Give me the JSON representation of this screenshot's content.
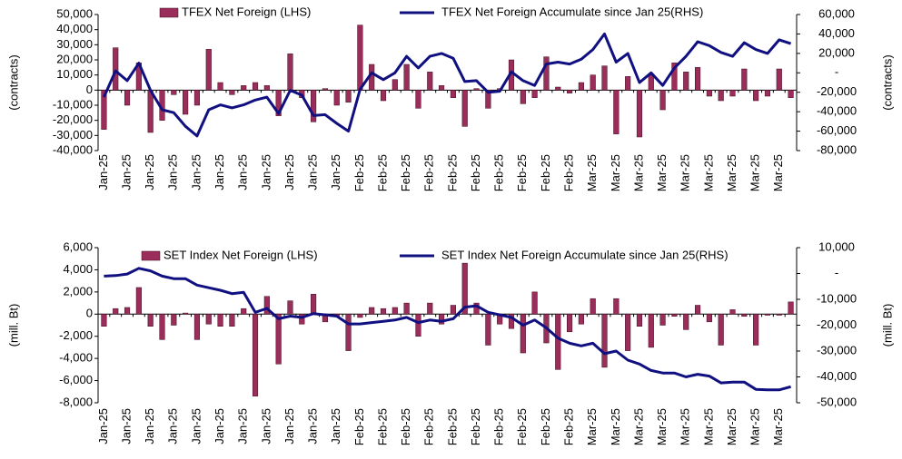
{
  "chart_data": [
    {
      "type": "combo",
      "ylabel": "(contracts)",
      "y2label": "(contracts)",
      "categories": [
        "Jan-25",
        null,
        "Jan-25",
        null,
        "Jan-25",
        null,
        "Jan-25",
        null,
        "Jan-25",
        null,
        "Jan-25",
        null,
        "Jan-25",
        null,
        "Jan-25",
        null,
        "Jan-25",
        null,
        "Jan-25",
        null,
        "Jan-25",
        null,
        "Feb-25",
        null,
        "Feb-25",
        null,
        "Feb-25",
        null,
        "Feb-25",
        null,
        "Feb-25",
        null,
        "Feb-25",
        null,
        "Feb-25",
        null,
        "Feb-25",
        null,
        "Feb-25",
        null,
        "Feb-25",
        null,
        "Mar-25",
        null,
        "Mar-25",
        null,
        "Mar-25",
        null,
        "Mar-25",
        null,
        "Mar-25",
        null,
        "Mar-25",
        null,
        "Mar-25",
        null,
        "Mar-25",
        null,
        "Mar-25",
        null
      ],
      "series": [
        {
          "name": "TFEX Net Foreign (LHS)",
          "type": "bar",
          "color": "#9b2d5a",
          "values": [
            -26000,
            28000,
            -10000,
            18000,
            -28000,
            -20000,
            -3000,
            -16000,
            -10000,
            27000,
            5000,
            -3000,
            3000,
            5000,
            3000,
            -17000,
            24000,
            -5000,
            -21000,
            1000,
            -10000,
            -8000,
            43000,
            17000,
            -7000,
            7000,
            17000,
            -12000,
            12000,
            3000,
            -5000,
            -24000,
            1000,
            -12000,
            1000,
            20000,
            -9000,
            -5000,
            22000,
            2000,
            -2000,
            5000,
            10000,
            16000,
            -29000,
            9000,
            -31000,
            10000,
            -13000,
            18000,
            12000,
            15000,
            -4000,
            -7000,
            -4000,
            14000,
            -7000,
            -4000,
            14000,
            -5000
          ]
        },
        {
          "name": "TFEX Net Foreign Accumulate since Jan 25(RHS)",
          "type": "line",
          "axis": "y2",
          "color": "#101080",
          "values": [
            -25000,
            2000,
            -8000,
            10000,
            -18000,
            -38000,
            -41000,
            -55000,
            -65000,
            -38000,
            -33000,
            -36000,
            -33000,
            -28000,
            -25000,
            -42000,
            -18000,
            -23000,
            -44000,
            -43000,
            -52000,
            -60000,
            -17000,
            0,
            -7000,
            0,
            17000,
            5000,
            17000,
            20000,
            15000,
            -9000,
            -8000,
            -20000,
            -19000,
            1000,
            -8000,
            -13000,
            9000,
            11000,
            9000,
            14000,
            24000,
            40000,
            11000,
            20000,
            -10000,
            0,
            -13000,
            5000,
            17000,
            32000,
            28000,
            21000,
            17000,
            31000,
            24000,
            20000,
            34000,
            30000
          ]
        }
      ],
      "ylim": [
        -40000,
        50000
      ],
      "yticks": [
        {
          "value": -40000,
          "label": "-40,000"
        },
        {
          "value": -30000,
          "label": "-30,000"
        },
        {
          "value": -20000,
          "label": "-20,000"
        },
        {
          "value": -10000,
          "label": "-10,000"
        },
        0,
        {
          "value": 10000,
          "label": "10,000"
        },
        {
          "value": 20000,
          "label": "20,000"
        },
        {
          "value": 30000,
          "label": "30,000"
        },
        {
          "value": 40000,
          "label": "40,000"
        },
        {
          "value": 50000,
          "label": "50,000"
        }
      ],
      "y2lim": [
        -80000,
        60000
      ],
      "y2ticks": [
        {
          "value": -80000,
          "label": "-80,000"
        },
        {
          "value": -60000,
          "label": "-60,000"
        },
        {
          "value": -40000,
          "label": "-40,000"
        },
        {
          "value": -20000,
          "label": "-20,000"
        },
        {
          "value": 0,
          "label": "-"
        },
        {
          "value": 20000,
          "label": "20,000"
        },
        {
          "value": 40000,
          "label": "40,000"
        },
        {
          "value": 60000,
          "label": "60,000"
        }
      ]
    },
    {
      "type": "combo",
      "ylabel": "(mill. Bt)",
      "y2label": "(mill. Bt)",
      "categories": [
        "Jan-25",
        null,
        "Jan-25",
        null,
        "Jan-25",
        null,
        "Jan-25",
        null,
        "Jan-25",
        null,
        "Jan-25",
        null,
        "Jan-25",
        null,
        "Jan-25",
        null,
        "Jan-25",
        null,
        "Jan-25",
        null,
        "Jan-25",
        null,
        "Feb-25",
        null,
        "Feb-25",
        null,
        "Feb-25",
        null,
        "Feb-25",
        null,
        "Feb-25",
        null,
        "Feb-25",
        null,
        "Feb-25",
        null,
        "Feb-25",
        null,
        "Feb-25",
        null,
        "Feb-25",
        null,
        "Mar-25",
        null,
        "Mar-25",
        null,
        "Mar-25",
        null,
        "Mar-25",
        null,
        "Mar-25",
        null,
        "Mar-25",
        null,
        "Mar-25",
        null,
        "Mar-25",
        null,
        "Mar-25",
        null
      ],
      "series": [
        {
          "name": "SET Index Net Foreign (LHS)",
          "type": "bar",
          "color": "#9b2d5a",
          "values": [
            -1100,
            500,
            600,
            2400,
            -1100,
            -2300,
            -1000,
            100,
            -2300,
            -900,
            -1100,
            -1100,
            500,
            -7400,
            1600,
            -4500,
            1200,
            -900,
            1800,
            -700,
            -200,
            -3300,
            -300,
            600,
            500,
            600,
            1000,
            -2000,
            1000,
            -900,
            800,
            4600,
            1000,
            -2800,
            -900,
            -1300,
            -3500,
            2000,
            -2600,
            -5000,
            -1600,
            -900,
            1400,
            -4800,
            1400,
            -3300,
            -1100,
            -3000,
            -1000,
            -200,
            -1400,
            800,
            -700,
            -2800,
            400,
            -200,
            -2800,
            -100,
            -100,
            1100
          ]
        },
        {
          "name": "SET Index Net Foreign Accumulate since Jan 25(RHS)",
          "type": "line",
          "axis": "y2",
          "color": "#101080",
          "values": [
            -1000,
            -800,
            -200,
            2000,
            1000,
            -1000,
            -2000,
            -2000,
            -4500,
            -5500,
            -6500,
            -7800,
            -7300,
            -15000,
            -13500,
            -17500,
            -16500,
            -17000,
            -15500,
            -16000,
            -16500,
            -19500,
            -19500,
            -19000,
            -18500,
            -18000,
            -17000,
            -19000,
            -18000,
            -18500,
            -17500,
            -13000,
            -12500,
            -15000,
            -16000,
            -17000,
            -20000,
            -18000,
            -21000,
            -25000,
            -27000,
            -28000,
            -27000,
            -31000,
            -30000,
            -33500,
            -35000,
            -37500,
            -38500,
            -38500,
            -40000,
            -39000,
            -39700,
            -42300,
            -42000,
            -42000,
            -44800,
            -45000,
            -45000,
            -43800
          ]
        }
      ],
      "ylim": [
        -8000,
        6000
      ],
      "yticks": [
        {
          "value": -8000,
          "label": "-8,000"
        },
        {
          "value": -6000,
          "label": "-6,000"
        },
        {
          "value": -4000,
          "label": "-4,000"
        },
        {
          "value": -2000,
          "label": "-2,000"
        },
        0,
        {
          "value": 2000,
          "label": "2,000"
        },
        {
          "value": 4000,
          "label": "4,000"
        },
        {
          "value": 6000,
          "label": "6,000"
        }
      ],
      "y2lim": [
        -50000,
        10000
      ],
      "y2ticks": [
        {
          "value": -50000,
          "label": "-50,000"
        },
        {
          "value": -40000,
          "label": "-40,000"
        },
        {
          "value": -30000,
          "label": "-30,000"
        },
        {
          "value": -20000,
          "label": "-20,000"
        },
        {
          "value": -10000,
          "label": "-10,000"
        },
        {
          "value": 0,
          "label": "-"
        },
        {
          "value": 10000,
          "label": "10,000"
        }
      ]
    }
  ]
}
